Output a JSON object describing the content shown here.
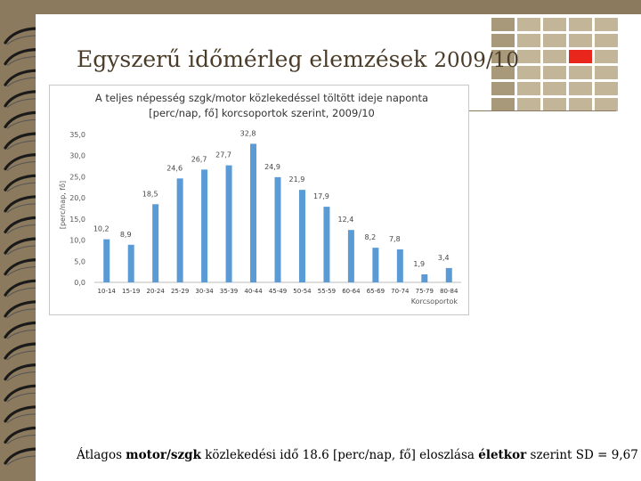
{
  "slide": {
    "title_main": "Egyszerű időmérleg elemzések",
    "title_year": "2009/10",
    "caption_parts": [
      {
        "text": "Átlagos ",
        "bold": false
      },
      {
        "text": "motor/szgk",
        "bold": true
      },
      {
        "text": " közlekedési idő 18.6 [perc/nap, fő] eloszlása ",
        "bold": false
      },
      {
        "text": "életkor",
        "bold": true
      },
      {
        "text": " szerint SD = 9,67",
        "bold": false
      }
    ]
  },
  "colors": {
    "background": "#8c7a5e",
    "bar": "#5b9bd5",
    "grid_tile": "#c3b698",
    "grid_tile_dark": "#a8997a",
    "accent_tile": "#e8261c",
    "title": "#4a3c28"
  },
  "chart_data": {
    "type": "bar",
    "title_line1": "A teljes népesség szgk/motor közlekedéssel töltött ideje naponta",
    "title_line2": "[perc/nap, fő] korcsoportok szerint, 2009/10",
    "ylabel": "[perc/nap, fő]",
    "xlabel": "Korcsoportok",
    "ylim": [
      0,
      35
    ],
    "yticks": [
      "0,0",
      "5,0",
      "10,0",
      "15,0",
      "20,0",
      "25,0",
      "30,0",
      "35,0"
    ],
    "categories": [
      "10-14",
      "15-19",
      "20-24",
      "25-29",
      "30-34",
      "35-39",
      "40-44",
      "45-49",
      "50-54",
      "55-59",
      "60-64",
      "65-69",
      "70-74",
      "75-79",
      "80-84"
    ],
    "values": [
      10.2,
      8.9,
      18.5,
      24.6,
      26.7,
      27.7,
      32.8,
      24.9,
      21.9,
      17.9,
      12.4,
      8.2,
      7.8,
      1.9,
      3.4
    ],
    "value_labels": [
      "10,2",
      "8,9",
      "18,5",
      "24,6",
      "26,7",
      "27,7",
      "32,8",
      "24,9",
      "21,9",
      "17,9",
      "12,4",
      "8,2",
      "7,8",
      "1,9",
      "3,4"
    ],
    "grid": false,
    "legend": "none"
  }
}
